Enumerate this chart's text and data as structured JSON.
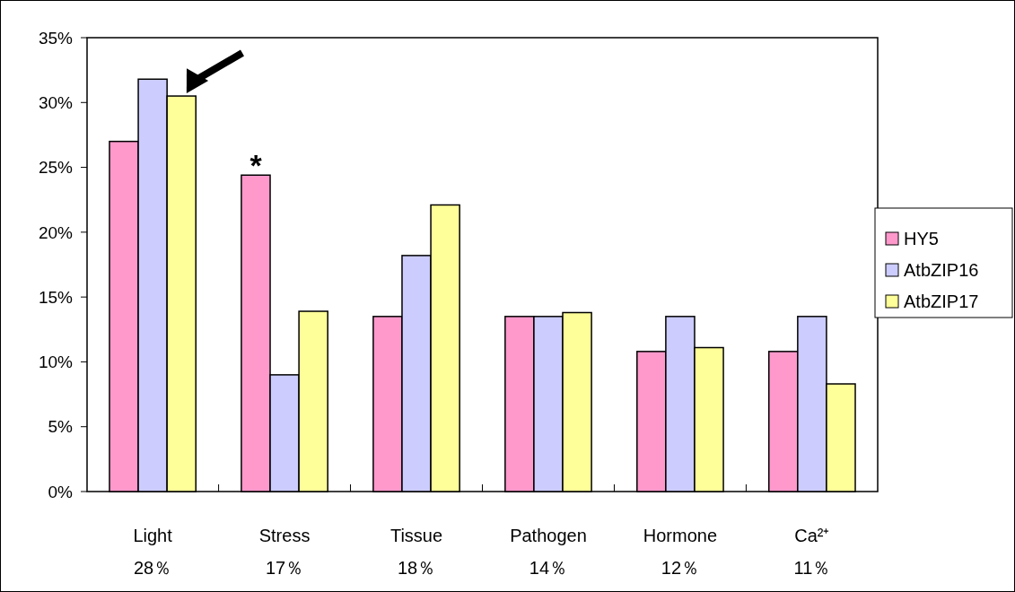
{
  "chart_data": {
    "type": "bar",
    "categories": [
      "Light\n28％",
      "Stress\n17％",
      "Tissue\n18％",
      "Pathogen\n14％",
      "Hormone\n12％",
      "Ca²⁺\n11％"
    ],
    "series": [
      {
        "name": "HY5",
        "color": "#ff99cc",
        "values": [
          27.0,
          24.4,
          13.5,
          13.5,
          10.8,
          10.8
        ]
      },
      {
        "name": "AtbZIP16",
        "color": "#ccccff",
        "values": [
          31.8,
          9.0,
          18.2,
          13.5,
          13.5,
          13.5
        ]
      },
      {
        "name": "AtbZIP17",
        "color": "#ffff99",
        "values": [
          30.5,
          13.9,
          22.1,
          13.8,
          11.1,
          8.3
        ]
      }
    ],
    "ylim": [
      0,
      35
    ],
    "yticks": [
      {
        "value": 0,
        "label": "0%"
      },
      {
        "value": 5,
        "label": "5%"
      },
      {
        "value": 10,
        "label": "10%"
      },
      {
        "value": 15,
        "label": "15%"
      },
      {
        "value": 20,
        "label": "20%"
      },
      {
        "value": 25,
        "label": "25%"
      },
      {
        "value": 30,
        "label": "30%"
      },
      {
        "value": 35,
        "label": "35%"
      }
    ],
    "annotations": [
      "*"
    ],
    "legend": "right",
    "grid": false
  }
}
